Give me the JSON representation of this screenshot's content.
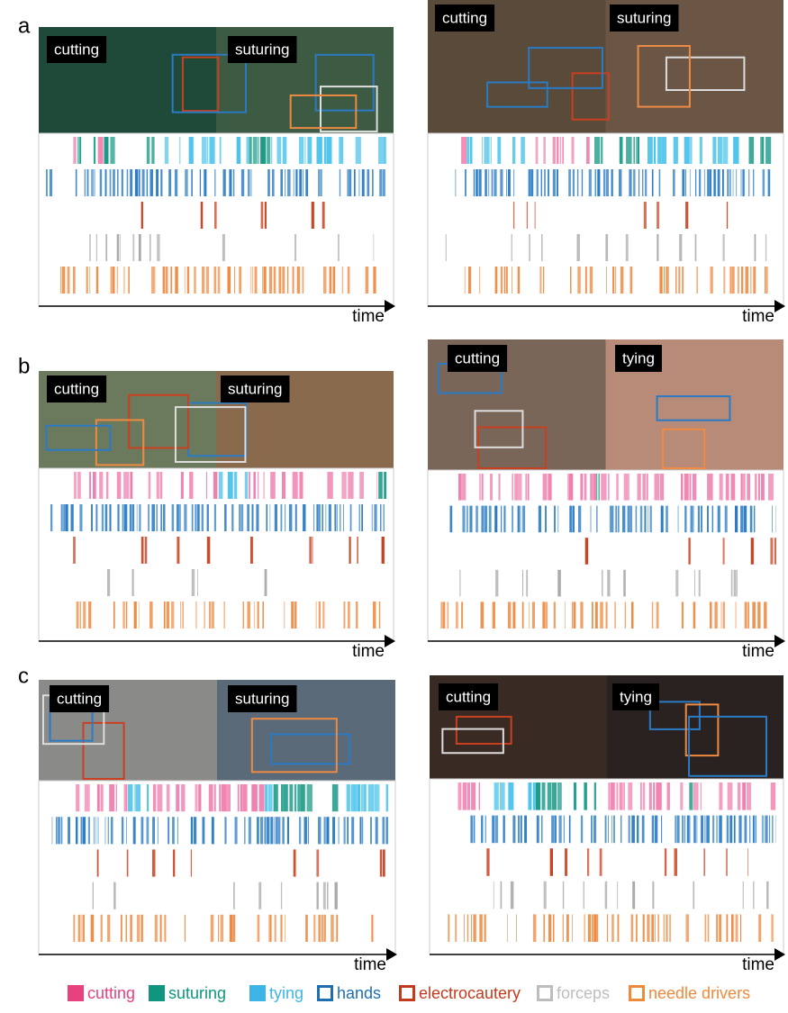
{
  "panels": [
    {
      "label": "a",
      "videos": [
        {
          "clips": [
            "cutting",
            "suturing"
          ],
          "axis": "time"
        },
        {
          "clips": [
            "cutting",
            "suturing"
          ],
          "axis": "time"
        }
      ]
    },
    {
      "label": "b",
      "videos": [
        {
          "clips": [
            "cutting",
            "suturing"
          ],
          "axis": "time"
        },
        {
          "clips": [
            "cutting",
            "tying"
          ],
          "axis": "time"
        }
      ]
    },
    {
      "label": "c",
      "videos": [
        {
          "clips": [
            "cutting",
            "suturing"
          ],
          "axis": "time"
        },
        {
          "clips": [
            "cutting",
            "tying"
          ],
          "axis": "time"
        }
      ]
    }
  ],
  "legend": [
    {
      "label": "cutting",
      "color": "#e8417f",
      "kind": "fill"
    },
    {
      "label": "suturing",
      "color": "#10967f",
      "kind": "fill"
    },
    {
      "label": "tying",
      "color": "#3cb5e6",
      "kind": "fill"
    },
    {
      "label": "hands",
      "color": "#1f6fb0",
      "kind": "box"
    },
    {
      "label": "electrocautery",
      "color": "#c43a1c",
      "kind": "box"
    },
    {
      "label": "forceps",
      "color": "#bdbdbd",
      "kind": "box"
    },
    {
      "label": "needle drivers",
      "color": "#ee8a3c",
      "kind": "box"
    }
  ]
}
